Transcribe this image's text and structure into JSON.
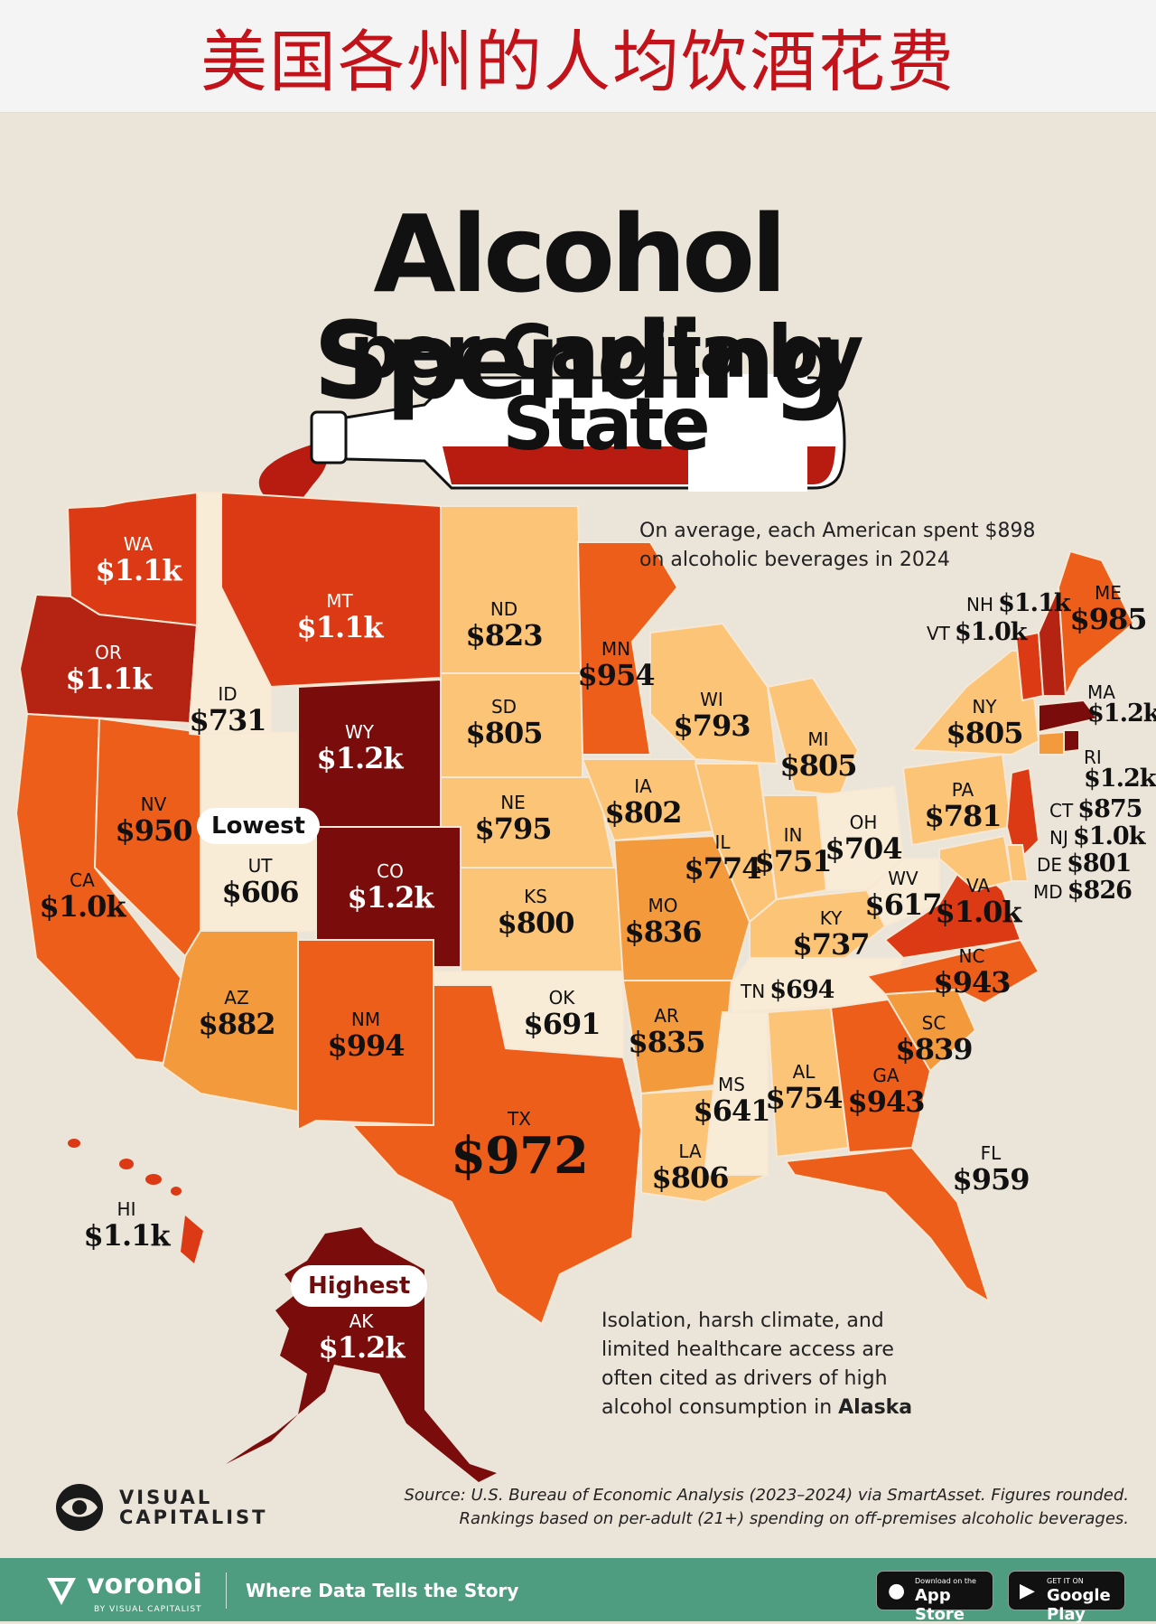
{
  "banner": {
    "title_cn": "美国各州的人均饮酒花费"
  },
  "title": {
    "line1": "Alcohol Spending",
    "line2": "per Capita by State"
  },
  "intro_note": "On average, each American spent $898 on alcoholic beverages in 2024",
  "alaska_note": {
    "text": "Isolation, harsh climate, and limited healthcare access are often cited as drivers of high alcohol consumption in",
    "emphasis": "Alaska"
  },
  "callouts": {
    "lowest": "Lowest",
    "highest": "Highest"
  },
  "legend_colors": {
    "lowest_tier": "#f8ecd6",
    "low_tier": "#fbc477",
    "mid_tier": "#f29a3c",
    "high_tier": "#ee5e1b",
    "higher_tier": "#dc3a14",
    "top_tier": "#7a0d0b"
  },
  "states": {
    "WA": {
      "abbr": "WA",
      "value": "$1.1k"
    },
    "OR": {
      "abbr": "OR",
      "value": "$1.1k"
    },
    "CA": {
      "abbr": "CA",
      "value": "$1.0k"
    },
    "NV": {
      "abbr": "NV",
      "value": "$950"
    },
    "ID": {
      "abbr": "ID",
      "value": "$731"
    },
    "MT": {
      "abbr": "MT",
      "value": "$1.1k"
    },
    "WY": {
      "abbr": "WY",
      "value": "$1.2k"
    },
    "UT": {
      "abbr": "UT",
      "value": "$606"
    },
    "CO": {
      "abbr": "CO",
      "value": "$1.2k"
    },
    "AZ": {
      "abbr": "AZ",
      "value": "$882"
    },
    "NM": {
      "abbr": "NM",
      "value": "$994"
    },
    "ND": {
      "abbr": "ND",
      "value": "$823"
    },
    "SD": {
      "abbr": "SD",
      "value": "$805"
    },
    "NE": {
      "abbr": "NE",
      "value": "$795"
    },
    "KS": {
      "abbr": "KS",
      "value": "$800"
    },
    "OK": {
      "abbr": "OK",
      "value": "$691"
    },
    "TX": {
      "abbr": "TX",
      "value": "$972"
    },
    "MN": {
      "abbr": "MN",
      "value": "$954"
    },
    "IA": {
      "abbr": "IA",
      "value": "$802"
    },
    "MO": {
      "abbr": "MO",
      "value": "$836"
    },
    "AR": {
      "abbr": "AR",
      "value": "$835"
    },
    "LA": {
      "abbr": "LA",
      "value": "$806"
    },
    "WI": {
      "abbr": "WI",
      "value": "$793"
    },
    "IL": {
      "abbr": "IL",
      "value": "$774"
    },
    "MI": {
      "abbr": "MI",
      "value": "$805"
    },
    "IN": {
      "abbr": "IN",
      "value": "$751"
    },
    "OH": {
      "abbr": "OH",
      "value": "$704"
    },
    "KY": {
      "abbr": "KY",
      "value": "$737"
    },
    "TN": {
      "abbr": "TN",
      "value": "$694"
    },
    "MS": {
      "abbr": "MS",
      "value": "$641"
    },
    "AL": {
      "abbr": "AL",
      "value": "$754"
    },
    "GA": {
      "abbr": "GA",
      "value": "$943"
    },
    "FL": {
      "abbr": "FL",
      "value": "$959"
    },
    "SC": {
      "abbr": "SC",
      "value": "$839"
    },
    "NC": {
      "abbr": "NC",
      "value": "$943"
    },
    "VA": {
      "abbr": "VA",
      "value": "$1.0k"
    },
    "WV": {
      "abbr": "WV",
      "value": "$617"
    },
    "PA": {
      "abbr": "PA",
      "value": "$781"
    },
    "NY": {
      "abbr": "NY",
      "value": "$805"
    },
    "ME": {
      "abbr": "ME",
      "value": "$985"
    },
    "NH": {
      "abbr": "NH",
      "value": "$1.1k"
    },
    "VT": {
      "abbr": "VT",
      "value": "$1.0k"
    },
    "MA": {
      "abbr": "MA",
      "value": "$1.2k"
    },
    "RI": {
      "abbr": "RI",
      "value": "$1.2k"
    },
    "CT": {
      "abbr": "CT",
      "value": "$875"
    },
    "NJ": {
      "abbr": "NJ",
      "value": "$1.0k"
    },
    "DE": {
      "abbr": "DE",
      "value": "$801"
    },
    "MD": {
      "abbr": "MD",
      "value": "$826"
    },
    "HI": {
      "abbr": "HI",
      "value": "$1.1k"
    },
    "AK": {
      "abbr": "AK",
      "value": "$1.2k"
    }
  },
  "source": {
    "line1": "Source: U.S. Bureau of Economic Analysis (2023–2024) via SmartAsset. Figures rounded.",
    "line2": "Rankings based on per-adult (21+) spending on off-premises alcoholic beverages."
  },
  "brand": {
    "logo_line1": "VISUAL",
    "logo_line2": "CAPITALIST",
    "logo_icon": "visual-capitalist-logo-icon"
  },
  "footer": {
    "brand": "voronoi",
    "byline": "BY VISUAL CAPITALIST",
    "tagline": "Where Data Tells the Story",
    "app_store_small": "Download on the",
    "app_store_large": "App Store",
    "google_play_small": "GET IT ON",
    "google_play_large": "Google Play"
  }
}
